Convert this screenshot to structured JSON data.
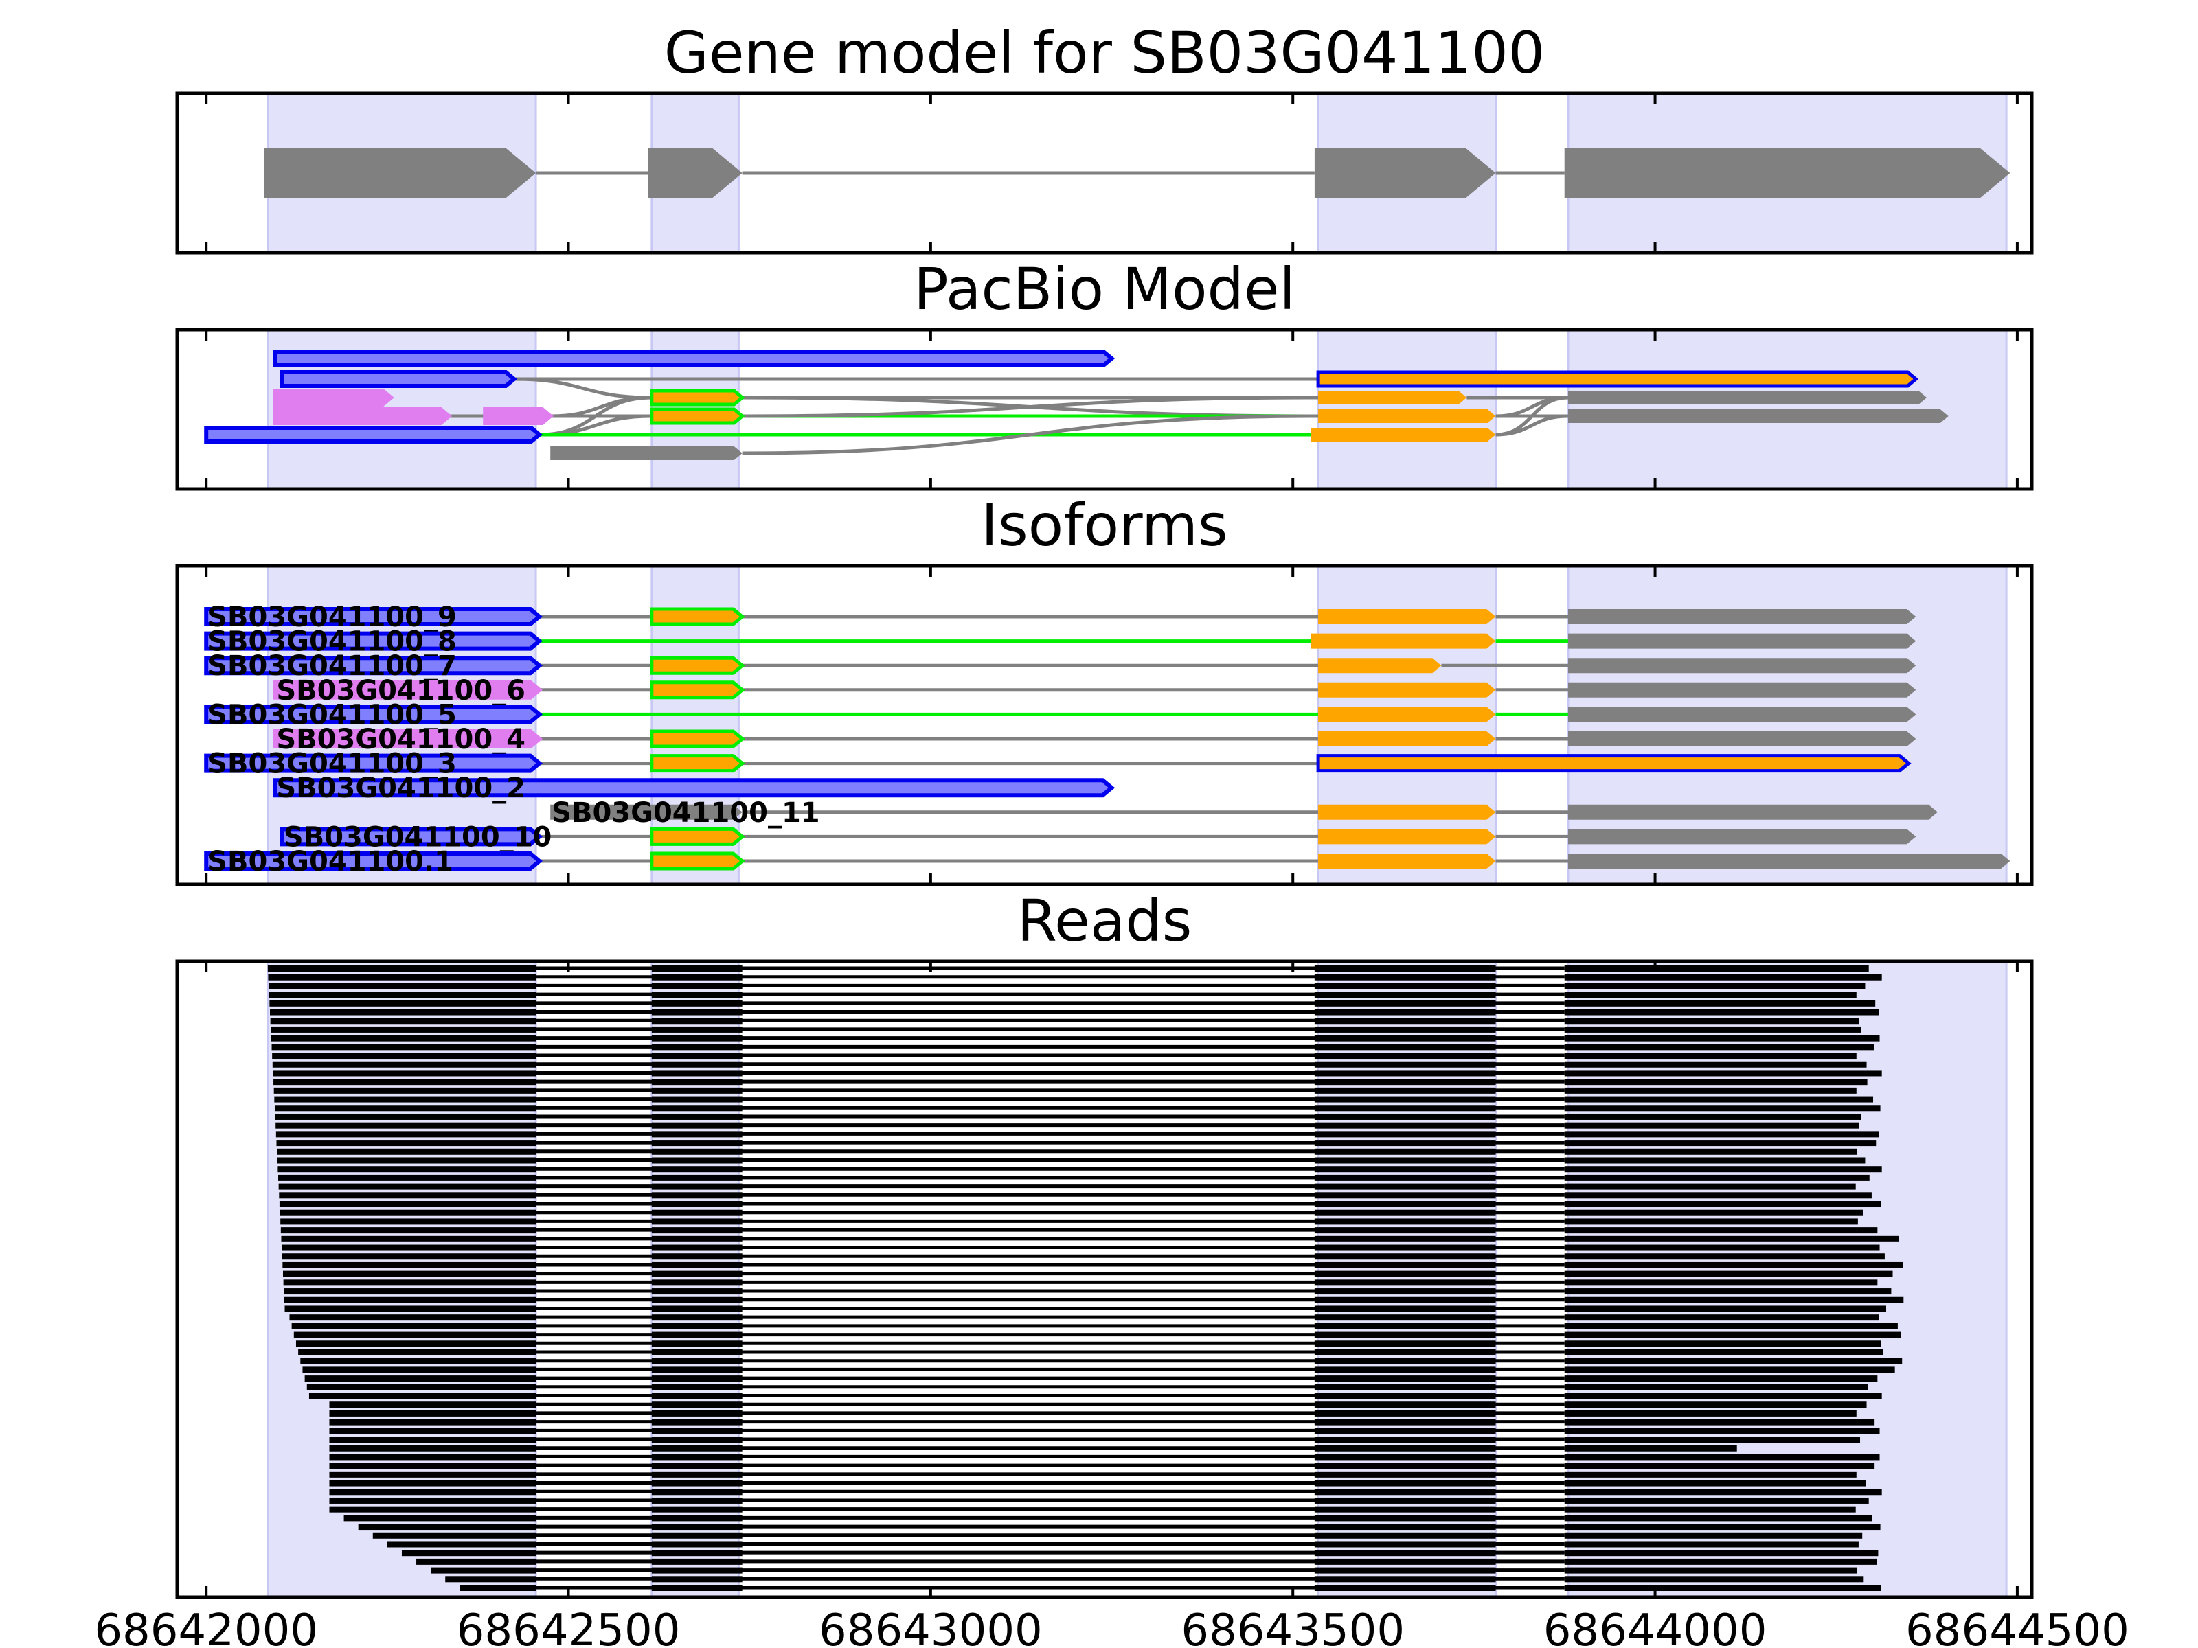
{
  "chart_data": {
    "type": "gene-structure",
    "x_range": [
      68641960,
      68644520
    ],
    "x_ticks": [
      68642000,
      68642500,
      68643000,
      68643500,
      68644000,
      68644500
    ],
    "x_tick_labels": [
      "68642000",
      "68642500",
      "68643000",
      "68643500",
      "68644000",
      "68644500"
    ],
    "colors": {
      "exon_highlight": "#e2e2fb",
      "gene_exon": "#808080",
      "intron_line": "#808080",
      "blue": "#0000ee",
      "purple_fill": "#8080ff",
      "violet": "#e07ef0",
      "green": "#00ee00",
      "orange": "#ffa500",
      "gray": "#808080",
      "reads": "#000000"
    },
    "exon_regions": [
      [
        68642085,
        68642455
      ],
      [
        68642615,
        68642735
      ],
      [
        68643535,
        68643780
      ],
      [
        68643880,
        68644485
      ]
    ],
    "panels": [
      {
        "title": "Gene model for SB03G041100",
        "kind": "gene",
        "exons": [
          [
            68642080,
            68642455
          ],
          [
            68642610,
            68642740
          ],
          [
            68643530,
            68643780
          ],
          [
            68643875,
            68644490
          ]
        ]
      },
      {
        "title": "PacBio Model",
        "kind": "graph",
        "nodes": [
          {
            "start": 68642095,
            "end": 68643250,
            "row": 1.0,
            "color": "blue"
          },
          {
            "start": 68642105,
            "end": 68642425,
            "row": 2.0,
            "color": "blue"
          },
          {
            "start": 68642095,
            "end": 68642255,
            "row": 2.9,
            "color": "violet"
          },
          {
            "start": 68642095,
            "end": 68642335,
            "row": 3.8,
            "color": "violet"
          },
          {
            "start": 68642385,
            "end": 68642475,
            "row": 3.8,
            "color": "violet"
          },
          {
            "start": 68642000,
            "end": 68642460,
            "row": 4.7,
            "color": "blue"
          },
          {
            "start": 68642475,
            "end": 68642740,
            "row": 5.6,
            "color": "gray"
          },
          {
            "start": 68642615,
            "end": 68642740,
            "row": 2.9,
            "color": "green"
          },
          {
            "start": 68642615,
            "end": 68642740,
            "row": 3.8,
            "color": "green"
          },
          {
            "start": 68643535,
            "end": 68644360,
            "row": 2.0,
            "color": "orange_blue"
          },
          {
            "start": 68643535,
            "end": 68643740,
            "row": 2.9,
            "color": "orange"
          },
          {
            "start": 68643535,
            "end": 68643780,
            "row": 3.8,
            "color": "orange"
          },
          {
            "start": 68643525,
            "end": 68643780,
            "row": 4.7,
            "color": "orange"
          },
          {
            "start": 68643880,
            "end": 68644375,
            "row": 2.9,
            "color": "gray"
          },
          {
            "start": 68643880,
            "end": 68644405,
            "row": 3.8,
            "color": "gray"
          }
        ],
        "edges": [
          {
            "x1": 68642425,
            "r1": 2.0,
            "x2": 68643535,
            "r2": 2.0,
            "color": "gray"
          },
          {
            "x1": 68642425,
            "r1": 2.0,
            "x2": 68642615,
            "r2": 2.9,
            "color": "gray"
          },
          {
            "x1": 68642335,
            "r1": 3.8,
            "x2": 68642385,
            "r2": 3.8,
            "color": "gray"
          },
          {
            "x1": 68642475,
            "r1": 3.8,
            "x2": 68642615,
            "r2": 2.9,
            "color": "gray"
          },
          {
            "x1": 68642475,
            "r1": 3.8,
            "x2": 68642615,
            "r2": 3.8,
            "color": "gray"
          },
          {
            "x1": 68642460,
            "r1": 4.7,
            "x2": 68642615,
            "r2": 2.9,
            "color": "gray"
          },
          {
            "x1": 68642460,
            "r1": 4.7,
            "x2": 68642615,
            "r2": 3.8,
            "color": "gray"
          },
          {
            "x1": 68642460,
            "r1": 4.7,
            "x2": 68643525,
            "r2": 4.7,
            "color": "green"
          },
          {
            "x1": 68642740,
            "r1": 2.9,
            "x2": 68643535,
            "r2": 2.9,
            "color": "gray"
          },
          {
            "x1": 68642740,
            "r1": 2.9,
            "x2": 68643535,
            "r2": 3.8,
            "color": "gray"
          },
          {
            "x1": 68642740,
            "r1": 3.8,
            "x2": 68643535,
            "r2": 3.8,
            "color": "green"
          },
          {
            "x1": 68642740,
            "r1": 3.8,
            "x2": 68643535,
            "r2": 2.9,
            "color": "gray"
          },
          {
            "x1": 68642740,
            "r1": 5.6,
            "x2": 68643535,
            "r2": 3.8,
            "color": "gray"
          },
          {
            "x1": 68643740,
            "r1": 2.9,
            "x2": 68643880,
            "r2": 2.9,
            "color": "gray"
          },
          {
            "x1": 68643780,
            "r1": 3.8,
            "x2": 68643880,
            "r2": 2.9,
            "color": "gray"
          },
          {
            "x1": 68643780,
            "r1": 3.8,
            "x2": 68643880,
            "r2": 3.8,
            "color": "gray"
          },
          {
            "x1": 68643780,
            "r1": 4.7,
            "x2": 68643880,
            "r2": 2.9,
            "color": "gray"
          },
          {
            "x1": 68643780,
            "r1": 4.7,
            "x2": 68643880,
            "r2": 3.8,
            "color": "gray"
          }
        ]
      },
      {
        "title": "Isoforms",
        "kind": "isoforms",
        "isoforms": [
          {
            "label": "SB03G041100_9",
            "exons": [
              [
                68642000,
                68642460,
                "blue"
              ],
              [
                68642615,
                68642740,
                "green"
              ],
              [
                68643535,
                68643780,
                "orange"
              ],
              [
                68643880,
                68644360,
                "gray"
              ]
            ],
            "intron": "gray"
          },
          {
            "label": "SB03G041100_8",
            "exons": [
              [
                68642000,
                68642460,
                "blue"
              ],
              [
                68643525,
                68643780,
                "orange"
              ],
              [
                68643880,
                68644360,
                "gray"
              ]
            ],
            "intron": "green"
          },
          {
            "label": "SB03G041100_7",
            "exons": [
              [
                68642000,
                68642460,
                "blue"
              ],
              [
                68642615,
                68642740,
                "green"
              ],
              [
                68643535,
                68643705,
                "orange"
              ],
              [
                68643880,
                68644360,
                "gray"
              ]
            ],
            "intron": "gray"
          },
          {
            "label": "SB03G041100_6",
            "exons": [
              [
                68642095,
                68642460,
                "violet"
              ],
              [
                68642615,
                68642740,
                "green"
              ],
              [
                68643535,
                68643780,
                "orange"
              ],
              [
                68643880,
                68644360,
                "gray"
              ]
            ],
            "intron": "gray"
          },
          {
            "label": "SB03G041100_5",
            "exons": [
              [
                68642000,
                68642460,
                "blue"
              ],
              [
                68643535,
                68643780,
                "orange"
              ],
              [
                68643880,
                68644360,
                "gray"
              ]
            ],
            "intron": "green"
          },
          {
            "label": "SB03G041100_4",
            "exons": [
              [
                68642095,
                68642460,
                "violet"
              ],
              [
                68642615,
                68642740,
                "green"
              ],
              [
                68643535,
                68643780,
                "orange"
              ],
              [
                68643880,
                68644360,
                "gray"
              ]
            ],
            "intron": "gray"
          },
          {
            "label": "SB03G041100_3",
            "exons": [
              [
                68642000,
                68642460,
                "blue"
              ],
              [
                68642615,
                68642740,
                "green"
              ],
              [
                68643535,
                68644350,
                "orange_blue"
              ]
            ],
            "intron": "gray"
          },
          {
            "label": "SB03G041100_2",
            "exons": [
              [
                68642095,
                68643250,
                "blue"
              ]
            ],
            "intron": "gray"
          },
          {
            "label": "SB03G041100_11",
            "exons": [
              [
                68642475,
                68642740,
                "gray"
              ],
              [
                68643535,
                68643780,
                "orange"
              ],
              [
                68643880,
                68644390,
                "gray"
              ]
            ],
            "intron": "gray"
          },
          {
            "label": "SB03G041100_10",
            "exons": [
              [
                68642105,
                68642460,
                "blue"
              ],
              [
                68642615,
                68642740,
                "green"
              ],
              [
                68643535,
                68643780,
                "orange"
              ],
              [
                68643880,
                68644360,
                "gray"
              ]
            ],
            "intron": "gray"
          },
          {
            "label": "SB03G041100.1",
            "exons": [
              [
                68642000,
                68642460,
                "blue"
              ],
              [
                68642615,
                68642740,
                "green"
              ],
              [
                68643535,
                68643780,
                "orange"
              ],
              [
                68643880,
                68644490,
                "gray"
              ]
            ],
            "intron": "gray"
          }
        ]
      },
      {
        "title": "Reads",
        "kind": "reads",
        "read_count": 72,
        "read_exons": [
          [
            68642085,
            68642455
          ],
          [
            68642615,
            68642740
          ],
          [
            68643530,
            68643780
          ],
          [
            68643875,
            68644385
          ]
        ]
      }
    ]
  }
}
